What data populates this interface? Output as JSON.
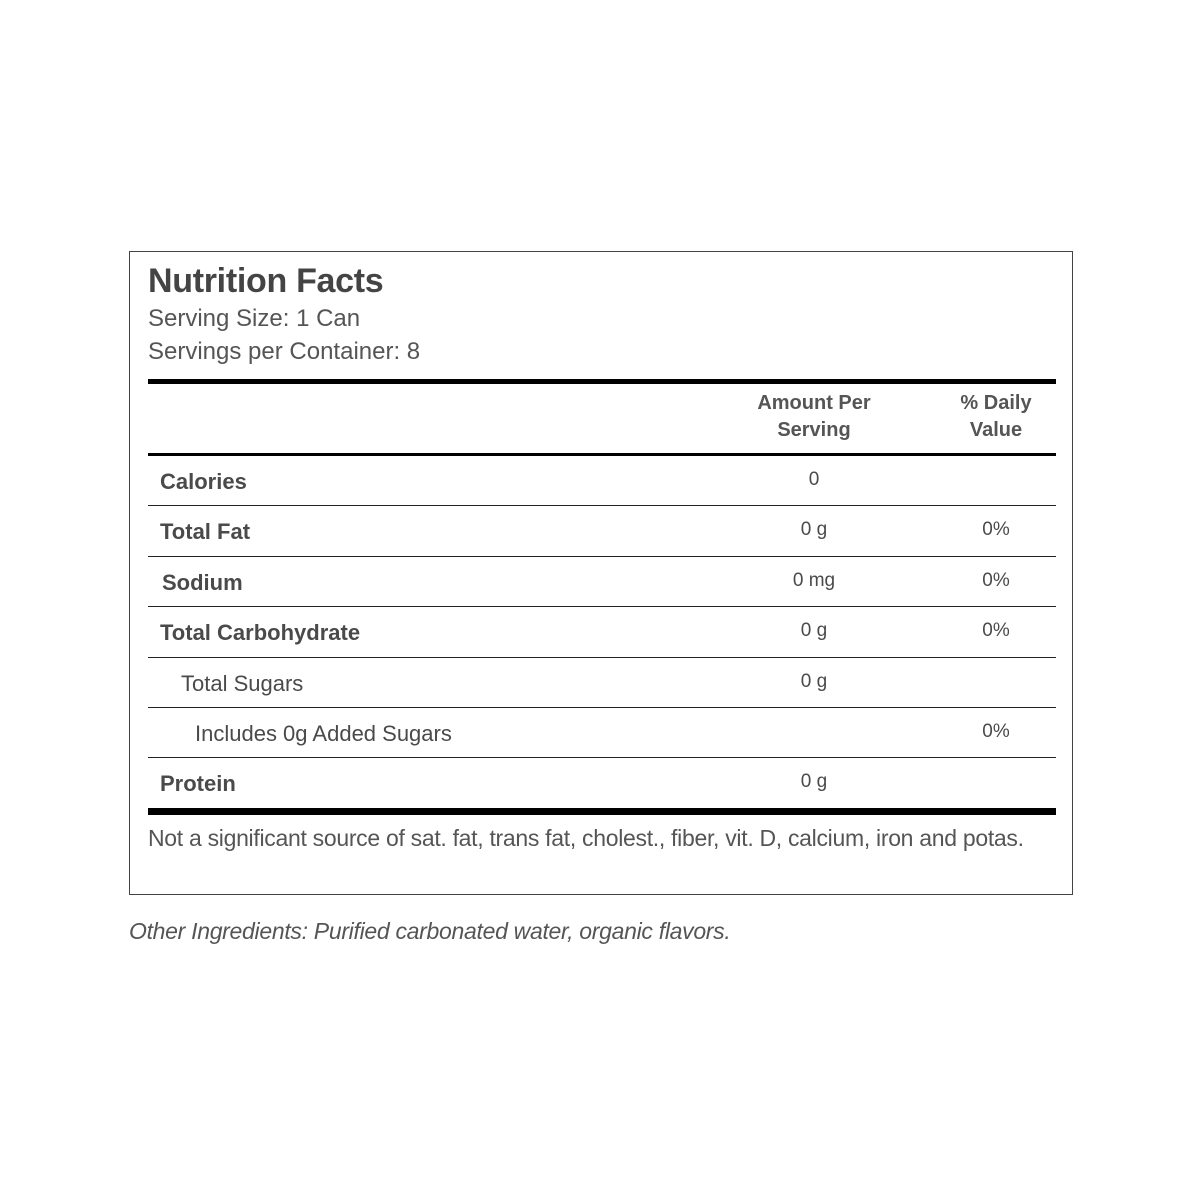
{
  "label": {
    "title": "Nutrition Facts",
    "serving_size": "Serving Size: 1 Can",
    "servings_per_container": "Servings per Container: 8",
    "columns": {
      "amount": "Amount Per Serving",
      "daily_value": "% Daily Value"
    },
    "rows": [
      {
        "name": "Calories",
        "amount": "0",
        "dv": ""
      },
      {
        "name": "Total Fat",
        "amount": "0 g",
        "dv": "0%"
      },
      {
        "name": "Sodium",
        "amount": "0 mg",
        "dv": "0%"
      },
      {
        "name": "Total Carbohydrate",
        "amount": "0 g",
        "dv": "0%"
      },
      {
        "name": "Total Sugars",
        "amount": "0 g",
        "dv": ""
      },
      {
        "name": "Includes 0g Added Sugars",
        "amount": "",
        "dv": "0%"
      },
      {
        "name": "Protein",
        "amount": "0 g",
        "dv": ""
      }
    ],
    "footnote": "Not a significant source of sat. fat, trans fat, cholest., fiber, vit. D, calcium, iron and potas."
  },
  "ingredients": "Other Ingredients: Purified carbonated water, organic flavors."
}
